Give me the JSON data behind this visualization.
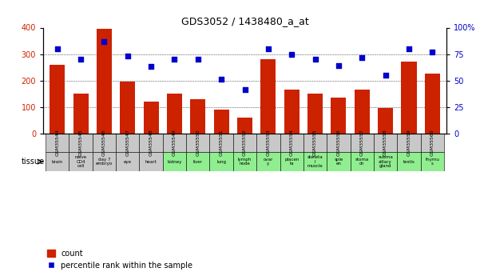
{
  "title": "GDS3052 / 1438480_a_at",
  "gsm_labels": [
    "GSM35544",
    "GSM35545",
    "GSM35546",
    "GSM35547",
    "GSM35548",
    "GSM35549",
    "GSM35550",
    "GSM35551",
    "GSM35552",
    "GSM35553",
    "GSM35554",
    "GSM35555",
    "GSM35556",
    "GSM35557",
    "GSM35558",
    "GSM35559",
    "GSM35560"
  ],
  "tissue_labels": [
    "brain",
    "naive\nCD4\ncell",
    "day 7\nembryо",
    "eye",
    "heart",
    "kidney",
    "liver",
    "lung",
    "lymph\nnode",
    "ovar\ny",
    "placen\nta",
    "skeleta\nl\nmuscle",
    "sple\nen",
    "stoma\nch",
    "subma\nxillary\ngland",
    "testis",
    "thymu\ns"
  ],
  "tissue_colors": [
    "#c8c8c8",
    "#c8c8c8",
    "#c8c8c8",
    "#c8c8c8",
    "#c8c8c8",
    "#90ee90",
    "#90ee90",
    "#90ee90",
    "#90ee90",
    "#90ee90",
    "#90ee90",
    "#90ee90",
    "#90ee90",
    "#90ee90",
    "#90ee90",
    "#90ee90",
    "#90ee90"
  ],
  "gsm_cell_color": "#c8c8c8",
  "counts": [
    260,
    150,
    395,
    195,
    120,
    150,
    130,
    90,
    60,
    280,
    165,
    150,
    135,
    165,
    95,
    270,
    225
  ],
  "percentiles": [
    80,
    70,
    87,
    73,
    63,
    70,
    70,
    51,
    41,
    80,
    75,
    70,
    64,
    72,
    55,
    80,
    77
  ],
  "bar_color": "#cc2200",
  "dot_color": "#0000cc",
  "left_ylim": [
    0,
    400
  ],
  "right_ylim": [
    0,
    100
  ],
  "left_yticks": [
    0,
    100,
    200,
    300,
    400
  ],
  "right_yticks": [
    0,
    25,
    50,
    75,
    100
  ],
  "right_yticklabels": [
    "0",
    "25",
    "50",
    "75",
    "100%"
  ],
  "grid_values": [
    100,
    200,
    300
  ],
  "legend_count_label": "count",
  "legend_percentile_label": "percentile rank within the sample",
  "bg_color": "#ffffff"
}
